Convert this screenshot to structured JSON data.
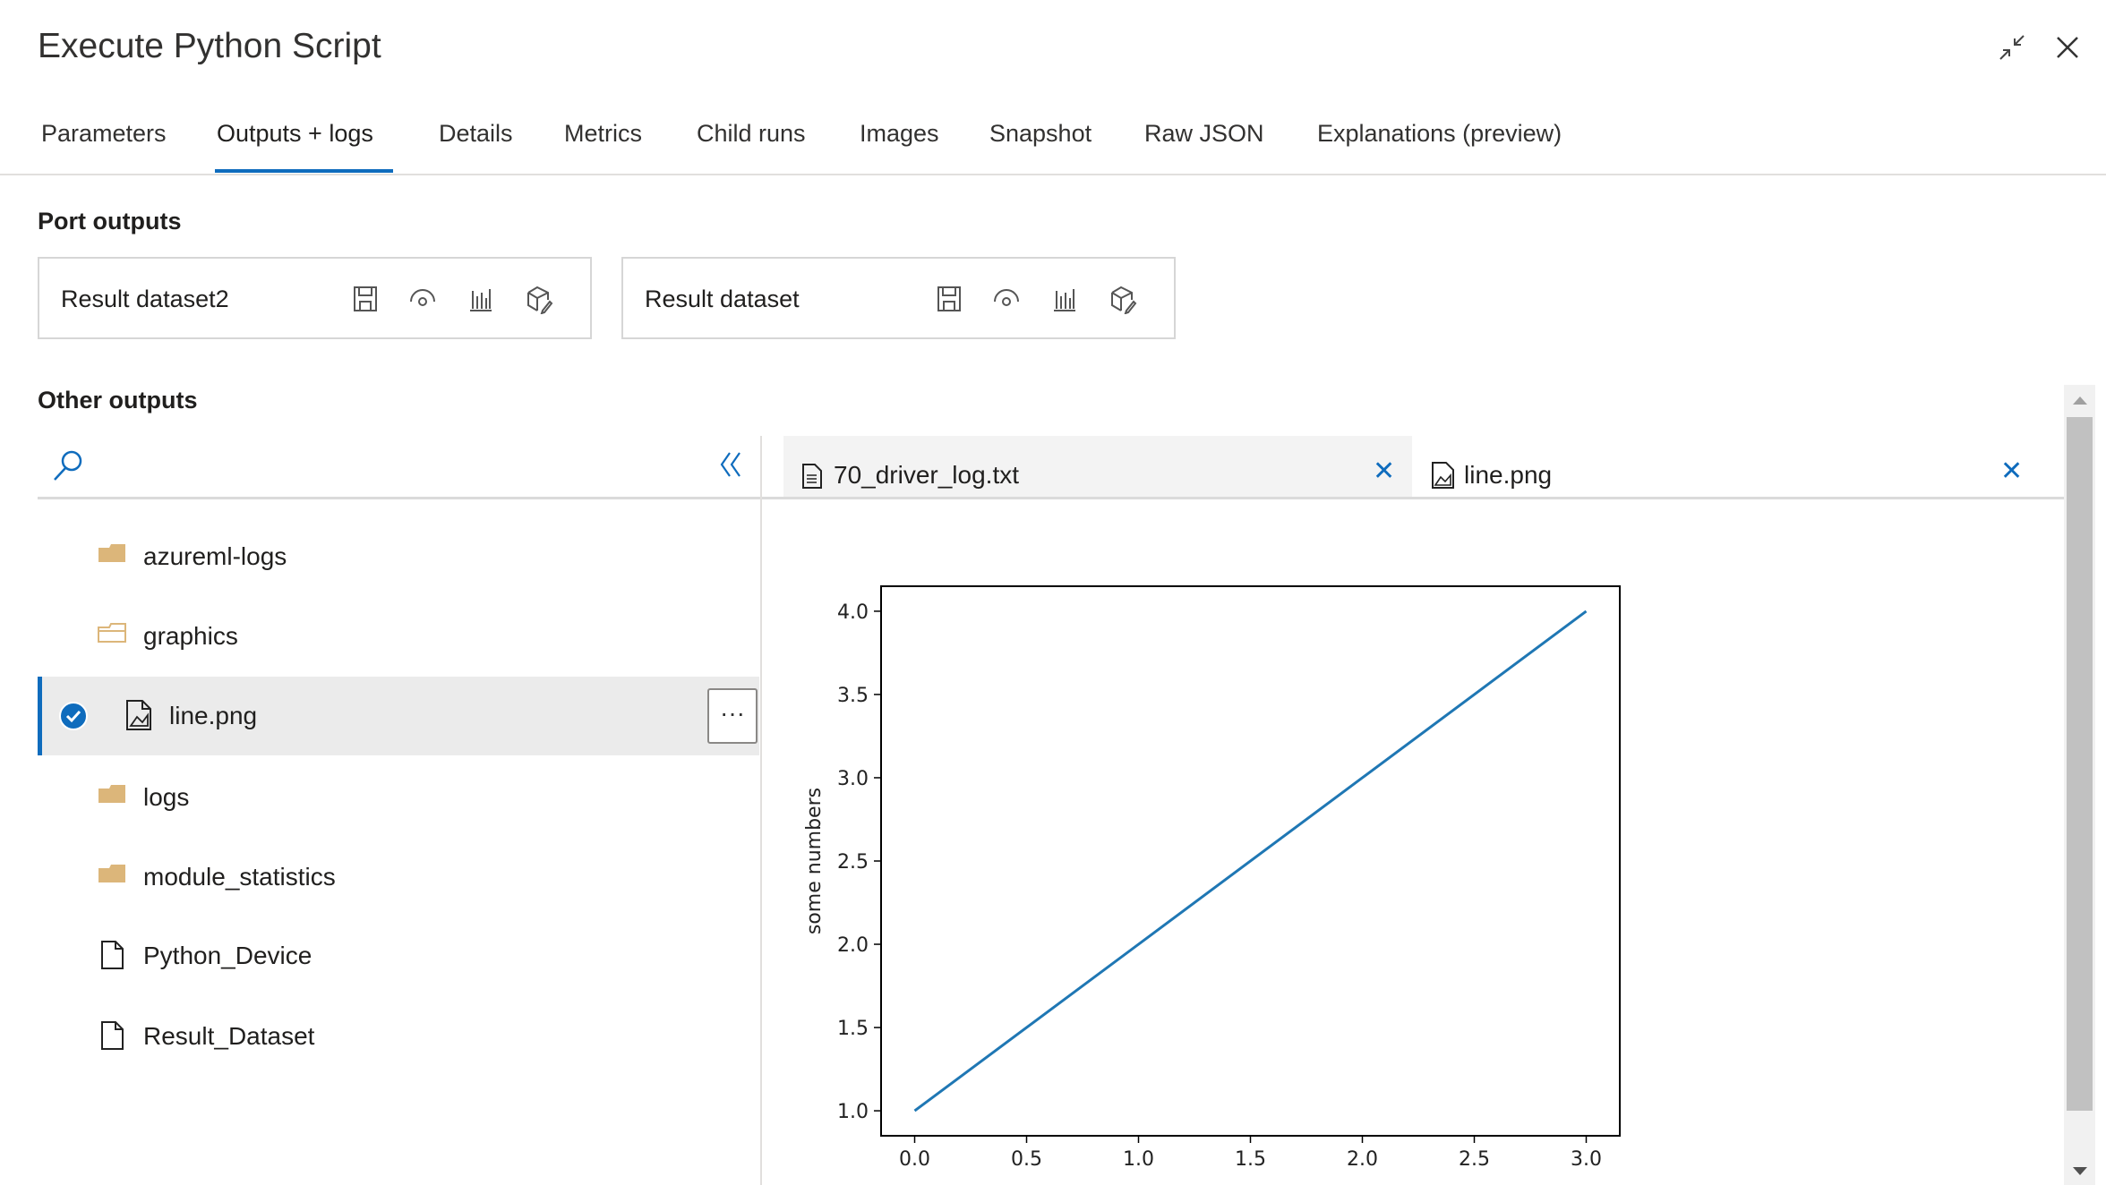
{
  "header": {
    "title": "Execute Python Script",
    "minimize_icon": "collapse-arrows-icon",
    "close_icon": "close-icon"
  },
  "tabs": [
    {
      "label": "Parameters"
    },
    {
      "label": "Outputs + logs",
      "active": true
    },
    {
      "label": "Details"
    },
    {
      "label": "Metrics"
    },
    {
      "label": "Child runs"
    },
    {
      "label": "Images"
    },
    {
      "label": "Snapshot"
    },
    {
      "label": "Raw JSON"
    },
    {
      "label": "Explanations (preview)"
    }
  ],
  "port_outputs": {
    "heading": "Port outputs",
    "cards": [
      {
        "label": "Result dataset2"
      },
      {
        "label": "Result dataset"
      }
    ],
    "card_icons": [
      "save-icon",
      "preview-eye-icon",
      "bar-chart-icon",
      "register-dataset-icon"
    ]
  },
  "other_outputs": {
    "heading": "Other outputs",
    "items": [
      {
        "name": "azureml-logs",
        "icon": "folder-icon"
      },
      {
        "name": "graphics",
        "icon": "open-folder-icon"
      },
      {
        "name": "line.png",
        "icon": "image-file-icon",
        "selected": true
      },
      {
        "name": "logs",
        "icon": "folder-icon"
      },
      {
        "name": "module_statistics",
        "icon": "folder-icon"
      },
      {
        "name": "Python_Device",
        "icon": "file-icon"
      },
      {
        "name": "Result_Dataset",
        "icon": "file-icon"
      }
    ],
    "more_label": "···"
  },
  "file_tabs": [
    {
      "label": "70_driver_log.txt",
      "icon": "text-file-icon"
    },
    {
      "label": "line.png",
      "icon": "image-file-icon",
      "active": true
    }
  ],
  "colors": {
    "accent": "#0f6cbd",
    "folder": "#dcb67a",
    "line": "#1f77b4"
  },
  "chart_data": {
    "type": "line",
    "x": [
      0,
      1,
      2,
      3
    ],
    "series": [
      {
        "values": [
          1,
          2,
          3,
          4
        ]
      }
    ],
    "xlabel": "",
    "ylabel": "some numbers",
    "xlim": [
      -0.15,
      3.15
    ],
    "ylim": [
      0.85,
      4.15
    ],
    "xticks": [
      "0.0",
      "0.5",
      "1.0",
      "1.5",
      "2.0",
      "2.5",
      "3.0"
    ],
    "yticks": [
      "1.0",
      "1.5",
      "2.0",
      "2.5",
      "3.0",
      "3.5",
      "4.0"
    ],
    "grid": false
  }
}
